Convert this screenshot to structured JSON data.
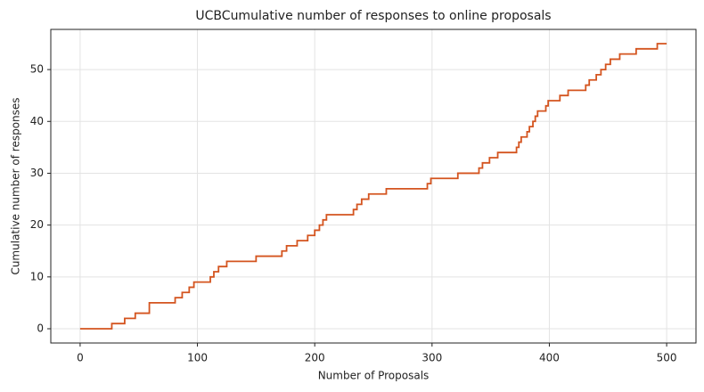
{
  "chart_data": {
    "type": "line",
    "title": "UCBCumulative number of responses to online proposals",
    "x_label": "Number of Proposals",
    "y_label": "Cumulative number of responses",
    "x": [
      0,
      27,
      27,
      38,
      38,
      47,
      47,
      59,
      59,
      81,
      81,
      87,
      87,
      93,
      93,
      97,
      97,
      111,
      111,
      114,
      114,
      118,
      118,
      125,
      125,
      150,
      150,
      172,
      172,
      176,
      176,
      185,
      185,
      194,
      194,
      200,
      200,
      204,
      204,
      207,
      207,
      210,
      210,
      233,
      233,
      236,
      236,
      240,
      240,
      246,
      246,
      261,
      261,
      296,
      296,
      299,
      299,
      322,
      322,
      340,
      340,
      343,
      343,
      349,
      349,
      356,
      356,
      372,
      372,
      374,
      374,
      376,
      376,
      381,
      381,
      383,
      383,
      386,
      386,
      388,
      388,
      390,
      390,
      397,
      397,
      399,
      399,
      409,
      409,
      416,
      416,
      431,
      431,
      434,
      434,
      440,
      440,
      444,
      444,
      448,
      448,
      452,
      452,
      460,
      460,
      474,
      474,
      492,
      492,
      500
    ],
    "values": [
      0,
      0,
      1,
      1,
      2,
      2,
      3,
      3,
      5,
      5,
      6,
      6,
      7,
      7,
      8,
      8,
      9,
      9,
      10,
      10,
      11,
      11,
      12,
      12,
      13,
      13,
      14,
      14,
      15,
      15,
      16,
      16,
      17,
      17,
      18,
      18,
      19,
      19,
      20,
      20,
      21,
      21,
      22,
      22,
      23,
      23,
      24,
      24,
      25,
      25,
      26,
      26,
      27,
      27,
      28,
      28,
      29,
      29,
      30,
      30,
      31,
      31,
      32,
      32,
      33,
      33,
      34,
      34,
      35,
      35,
      36,
      36,
      37,
      37,
      38,
      38,
      39,
      39,
      40,
      40,
      41,
      41,
      42,
      42,
      43,
      43,
      44,
      44,
      45,
      45,
      46,
      46,
      47,
      47,
      48,
      48,
      49,
      49,
      50,
      50,
      51,
      51,
      52,
      52,
      53,
      53,
      54,
      54,
      55,
      55
    ],
    "color": "#d4541f",
    "xlim": [
      -25,
      525
    ],
    "ylim": [
      -2.75,
      57.75
    ],
    "xticks": [
      0,
      100,
      200,
      300,
      400,
      500
    ],
    "yticks": [
      0,
      10,
      20,
      30,
      40,
      50
    ],
    "grid": true
  }
}
